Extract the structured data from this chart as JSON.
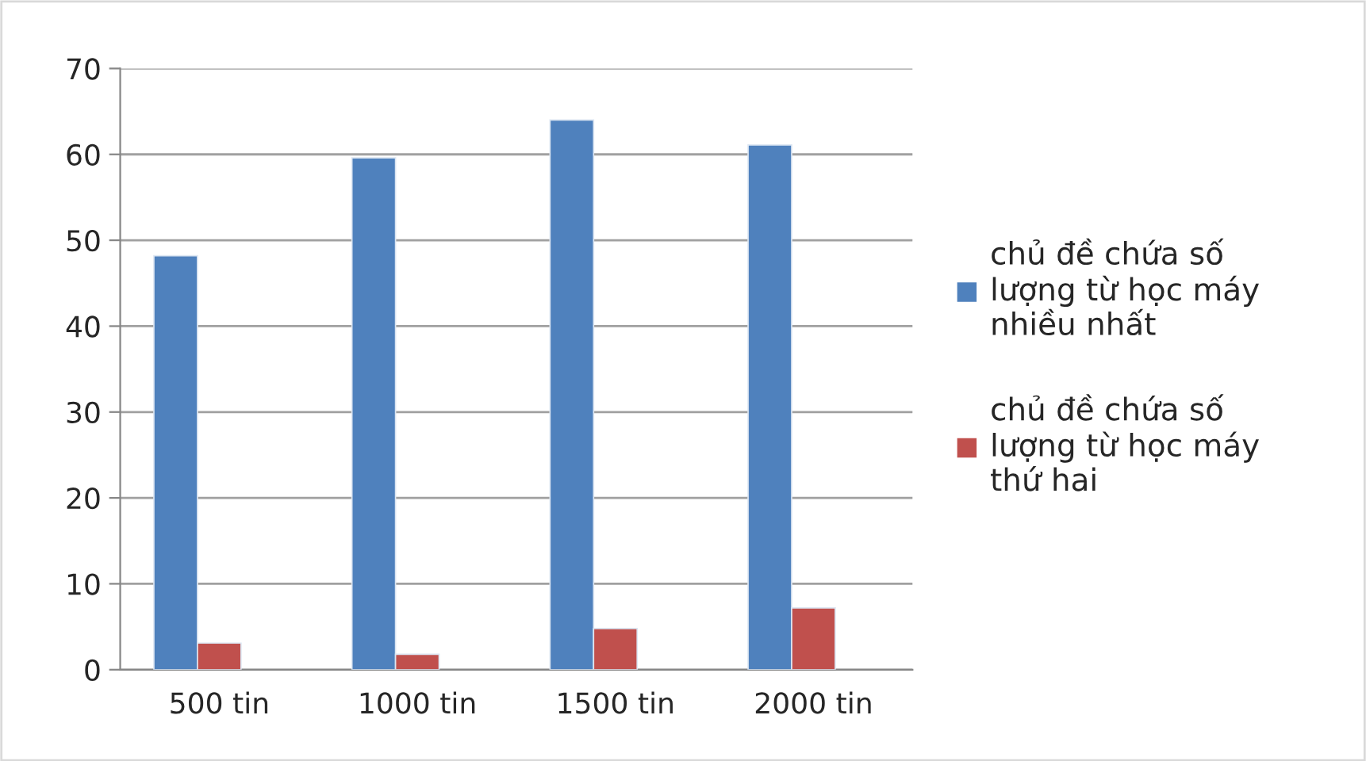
{
  "chart_data": {
    "type": "bar",
    "categories": [
      "500 tin",
      "1000 tin",
      "1500 tin",
      "2000 tin"
    ],
    "series": [
      {
        "name": "chủ đề chứa số lượng từ học máy nhiều nhất",
        "color": "#4f81bd",
        "values": [
          48.2,
          59.6,
          64.0,
          61.1
        ]
      },
      {
        "name": "chủ đề chứa số lượng từ học máy thứ hai",
        "color": "#c0504d",
        "values": [
          3.1,
          1.8,
          4.8,
          7.2
        ]
      }
    ],
    "ylim": [
      0,
      70
    ],
    "yticks": [
      0,
      10,
      20,
      30,
      40,
      50,
      60,
      70
    ],
    "grid": "y",
    "legend": "right"
  }
}
